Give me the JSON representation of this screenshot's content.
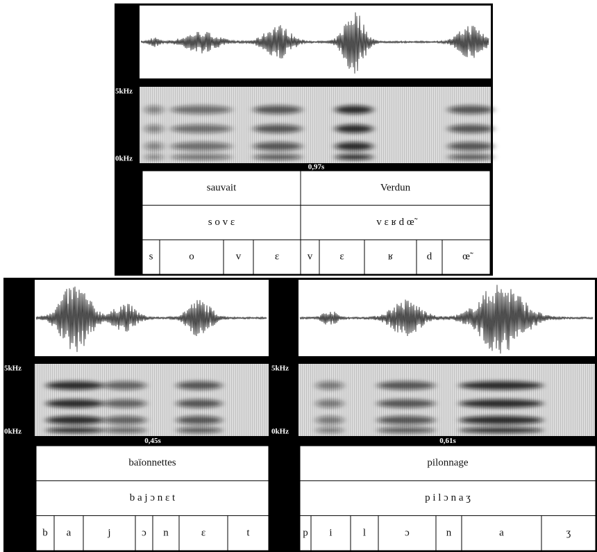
{
  "panels": [
    {
      "frequency_max": "5kHz",
      "frequency_min": "0kHz",
      "duration": "0,97s",
      "words": [
        "sauvait",
        "Verdun"
      ],
      "transcriptions": [
        "s o v ɛ",
        "v ɛ ʁ d œ̃"
      ],
      "segments": [
        "s",
        "o",
        "v",
        "ɛ",
        "v",
        "ɛ",
        "ʁ",
        "d",
        "œ̃"
      ]
    },
    {
      "frequency_max": "5kHz",
      "frequency_min": "0kHz",
      "duration": "0,45s",
      "words": [
        "baïonnettes"
      ],
      "transcriptions": [
        "b a j ɔ n ɛ t"
      ],
      "segments": [
        "b",
        "a",
        "j",
        "ɔ",
        "n",
        "ɛ",
        "t"
      ]
    },
    {
      "frequency_max": "5kHz",
      "frequency_min": "0kHz",
      "duration": "0,61s",
      "words": [
        "pilonnage"
      ],
      "transcriptions": [
        "p i l ɔ n a ʒ"
      ],
      "segments": [
        "p",
        "i",
        "l",
        "ɔ",
        "n",
        "a",
        "ʒ"
      ]
    }
  ]
}
